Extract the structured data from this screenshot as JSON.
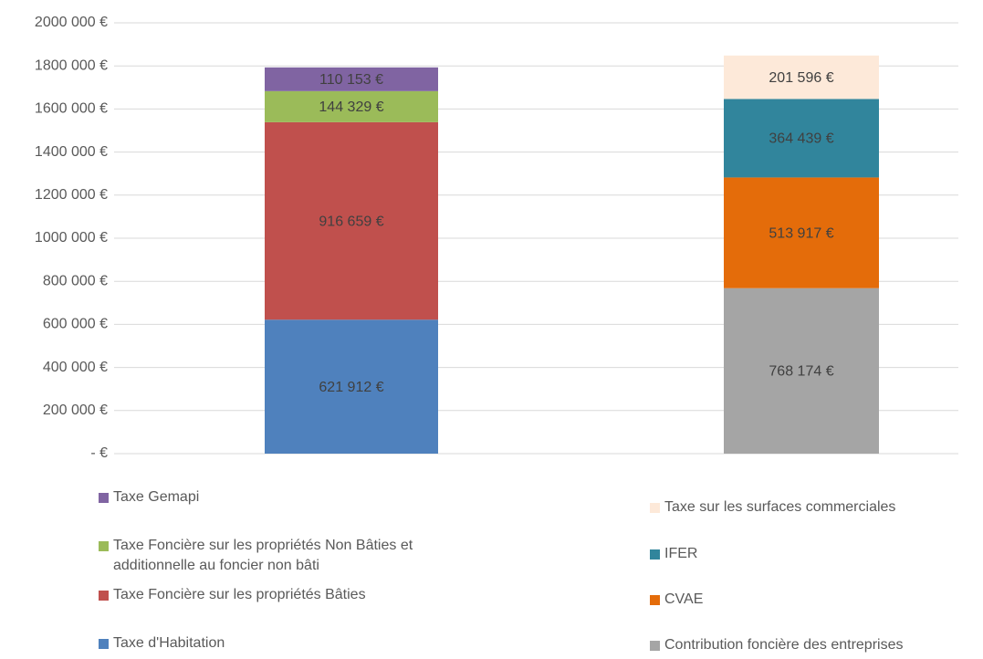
{
  "chart_data": {
    "type": "stacked_bar",
    "ylim": [
      0,
      2000000
    ],
    "yticks": [
      {
        "value": 0,
        "label": "-   €"
      },
      {
        "value": 200000,
        "label": "200 000 €"
      },
      {
        "value": 400000,
        "label": "400 000 €"
      },
      {
        "value": 600000,
        "label": "600 000 €"
      },
      {
        "value": 800000,
        "label": "800 000 €"
      },
      {
        "value": 1000000,
        "label": "1000 000 €"
      },
      {
        "value": 1200000,
        "label": "1200 000 €"
      },
      {
        "value": 1400000,
        "label": "1400 000 €"
      },
      {
        "value": 1600000,
        "label": "1600 000 €"
      },
      {
        "value": 1800000,
        "label": "1800 000 €"
      },
      {
        "value": 2000000,
        "label": "2000 000 €"
      }
    ],
    "grid": true,
    "bars": [
      {
        "series": [
          {
            "name": "Taxe d'Habitation",
            "color": "#4f81bd",
            "values": [
              621912
            ],
            "value_labels": [
              "621 912 €"
            ]
          },
          {
            "name": "Taxe Foncière sur les propriétés Bâties",
            "color": "#c0504d",
            "values": [
              916659
            ],
            "value_labels": [
              "916 659 €"
            ]
          },
          {
            "name": "Taxe Foncière sur les propriétés Non Bâties et additionnelle au foncier non bâti",
            "color": "#9bbb59",
            "values": [
              144329
            ],
            "value_labels": [
              "144 329 €"
            ]
          },
          {
            "name": "Taxe Gemapi",
            "color": "#8064a2",
            "values": [
              110153
            ],
            "value_labels": [
              "110 153 €"
            ]
          }
        ]
      },
      {
        "series": [
          {
            "name": "Contribution foncière des entreprises",
            "color": "#a5a5a5",
            "values": [
              768174
            ],
            "value_labels": [
              "768 174 €"
            ]
          },
          {
            "name": "CVAE",
            "color": "#e46c0a",
            "values": [
              513917
            ],
            "value_labels": [
              "513 917 €"
            ]
          },
          {
            "name": "IFER",
            "color": "#31859c",
            "values": [
              364439
            ],
            "value_labels": [
              "364 439 €"
            ]
          },
          {
            "name": "Taxe sur les surfaces commerciales",
            "color": "#fde9d9",
            "values": [
              201596
            ],
            "value_labels": [
              "201 596 €"
            ]
          }
        ]
      }
    ]
  }
}
